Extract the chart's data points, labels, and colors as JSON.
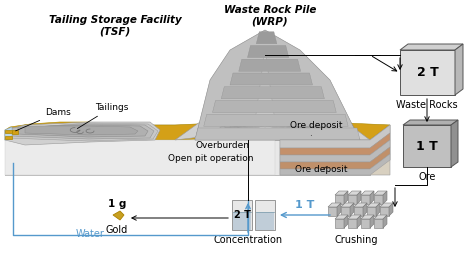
{
  "bg_color": "#FFFFFF",
  "labels": {
    "tsf": "Tailing Storage Facility\n(TSF)",
    "wrp": "Waste Rock Pile\n(WRP)",
    "dams": "Dams",
    "tailings": "Tailings",
    "overburden": "Overburden",
    "open_pit": "Open pit operation",
    "ore_deposit_top": "Ore deposit",
    "ore_deposit_bot": "Ore deposit",
    "water": "Water",
    "waste_rocks": "Waste Rocks",
    "ore": "Ore",
    "crushing": "Crushing",
    "concentration": "Concentration",
    "gold": "Gold",
    "one_t_right": "1 T",
    "two_t_right": "2 T",
    "two_t_bottom": "2 T",
    "one_t_bottom": "1 T",
    "one_g": "1 g"
  },
  "colors": {
    "gold": "#D4A017",
    "gold_edge": "#AA8800",
    "gray_light": "#D8D8D8",
    "gray_mid": "#B8B8B8",
    "gray_dark": "#909090",
    "gray_darker": "#787878",
    "brown_light": "#D4A882",
    "brown_mid": "#C49070",
    "blue": "#5599CC",
    "blue_light": "#AACCEE",
    "white": "#FFFFFF",
    "black": "#000000",
    "box_face": "#E0E0E0",
    "box_side": "#B8B8B8",
    "box_top": "#D0D0D0",
    "box_dark_face": "#C0C0C0",
    "box_dark_side": "#909090",
    "box_dark_top": "#B0B0B0"
  }
}
